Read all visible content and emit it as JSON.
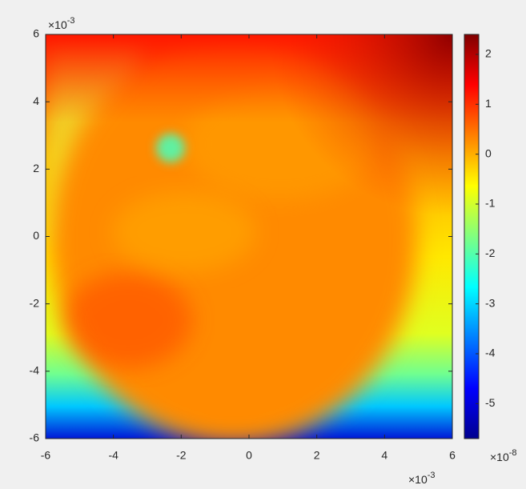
{
  "chart_data": {
    "type": "heatmap",
    "xlim": [
      -6,
      6
    ],
    "xticks": [
      -6,
      -4,
      -2,
      0,
      2,
      4,
      6
    ],
    "ylim": [
      -6,
      6
    ],
    "yticks": [
      -6,
      -4,
      -2,
      0,
      2,
      4,
      6
    ],
    "x_multiplier": "×10",
    "x_multiplier_exponent": "-3",
    "y_multiplier": "×10",
    "y_multiplier_exponent": "-3",
    "colorbar": {
      "clim": [
        -5.7,
        2.4
      ],
      "ticks": [
        -5,
        -4,
        -3,
        -2,
        -1,
        0,
        1,
        2
      ],
      "multiplier": "×10",
      "multiplier_exponent": "-8"
    }
  }
}
